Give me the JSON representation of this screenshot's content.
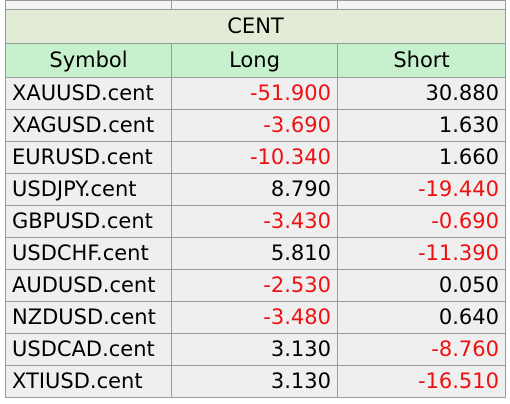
{
  "table": {
    "title": "CENT",
    "headers": {
      "symbol": "Symbol",
      "long": "Long",
      "short": "Short"
    },
    "rows": [
      {
        "symbol": "XAUUSD.cent",
        "long": "-51.900",
        "short": "30.880"
      },
      {
        "symbol": "XAGUSD.cent",
        "long": "-3.690",
        "short": "1.630"
      },
      {
        "symbol": "EURUSD.cent",
        "long": "-10.340",
        "short": "1.660"
      },
      {
        "symbol": "USDJPY.cent",
        "long": "8.790",
        "short": "-19.440"
      },
      {
        "symbol": "GBPUSD.cent",
        "long": "-3.430",
        "short": "-0.690"
      },
      {
        "symbol": "USDCHF.cent",
        "long": "5.810",
        "short": "-11.390"
      },
      {
        "symbol": "AUDUSD.cent",
        "long": "-2.530",
        "short": "0.050"
      },
      {
        "symbol": "NZDUSD.cent",
        "long": "-3.480",
        "short": "0.640"
      },
      {
        "symbol": "USDCAD.cent",
        "long": "3.130",
        "short": "-8.760"
      },
      {
        "symbol": "XTIUSD.cent",
        "long": "3.130",
        "short": "-16.510"
      }
    ]
  },
  "colors": {
    "negative": "#ee1111",
    "positive": "#000000",
    "title_bg": "#e2ebd6",
    "header_bg": "#c7f0cd",
    "cell_bg": "#efefef"
  }
}
